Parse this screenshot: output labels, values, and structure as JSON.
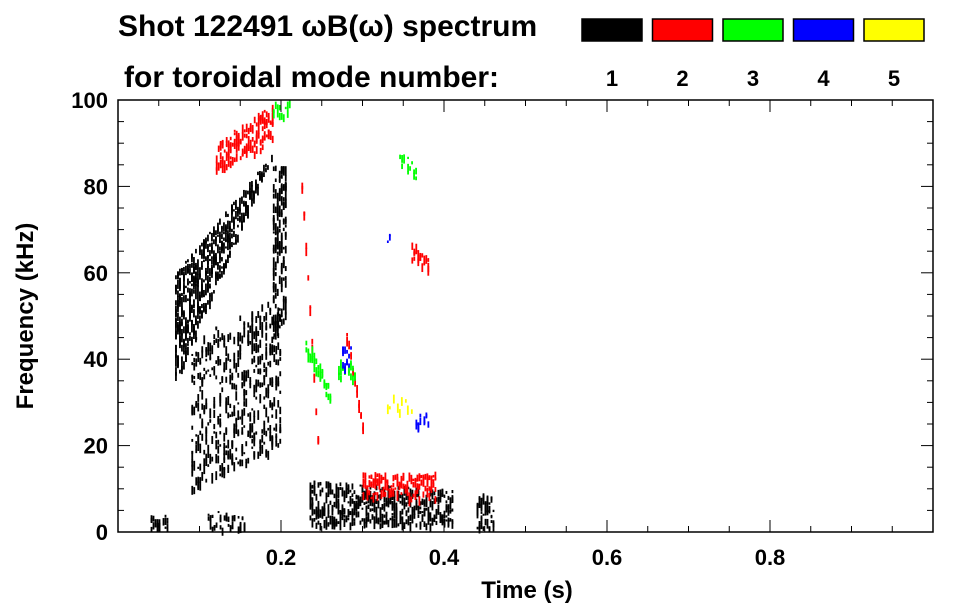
{
  "chart_data": {
    "type": "heatmap",
    "title_line1": "Shot 122491 ωB(ω) spectrum",
    "title_line2": "for toroidal mode number:",
    "xlabel": "Time (s)",
    "ylabel": "Frequency (kHz)",
    "xlim": [
      0,
      1.0
    ],
    "ylim": [
      0,
      100
    ],
    "x_ticks": [
      {
        "value": 0.2,
        "label": "0.2"
      },
      {
        "value": 0.4,
        "label": "0.4"
      },
      {
        "value": 0.6,
        "label": "0.6"
      },
      {
        "value": 0.8,
        "label": "0.8"
      }
    ],
    "y_ticks": [
      {
        "value": 0,
        "label": "0"
      },
      {
        "value": 20,
        "label": "20"
      },
      {
        "value": 40,
        "label": "40"
      },
      {
        "value": 60,
        "label": "60"
      },
      {
        "value": 80,
        "label": "80"
      },
      {
        "value": 100,
        "label": "100"
      }
    ],
    "legend_placement": "top-right",
    "legend": [
      {
        "label": "1",
        "color": "#000000"
      },
      {
        "label": "2",
        "color": "#ff0000"
      },
      {
        "label": "3",
        "color": "#00ff00"
      },
      {
        "label": "4",
        "color": "#0000ff"
      },
      {
        "label": "5",
        "color": "#ffff00"
      }
    ],
    "modes": [
      {
        "n": 1,
        "color": "#000000",
        "regions": [
          {
            "t": [
              0.07,
              0.19
            ],
            "f_low": [
              35,
              88
            ],
            "f_high": [
              60,
              88
            ],
            "density": 0.9
          },
          {
            "t": [
              0.09,
              0.2
            ],
            "f_low": [
              10,
              20
            ],
            "f_high": [
              45,
              55
            ],
            "density": 0.35
          },
          {
            "t": [
              0.235,
              0.41
            ],
            "f_low": [
              2,
              2
            ],
            "f_high": [
              12,
              10
            ],
            "density": 0.75
          },
          {
            "t": [
              0.04,
              0.06
            ],
            "f_low": [
              1,
              1
            ],
            "f_high": [
              4,
              4
            ],
            "density": 0.8
          },
          {
            "t": [
              0.11,
              0.155
            ],
            "f_low": [
              1,
              1
            ],
            "f_high": [
              5,
              5
            ],
            "density": 0.6
          },
          {
            "t": [
              0.44,
              0.46
            ],
            "f_low": [
              1,
              1
            ],
            "f_high": [
              9,
              9
            ],
            "density": 0.6
          },
          {
            "t": [
              0.19,
              0.205
            ],
            "f_low": [
              45,
              50
            ],
            "f_high": [
              85,
              85
            ],
            "density": 0.8
          }
        ]
      },
      {
        "n": 2,
        "color": "#ff0000",
        "regions": [
          {
            "t": [
              0.12,
              0.19
            ],
            "f_low": [
              84,
              90
            ],
            "f_high": [
              90,
              100
            ],
            "density": 0.7
          },
          {
            "t": [
              0.225,
              0.245
            ],
            "f_low": [
              80,
              20
            ],
            "f_high": [
              82,
              22
            ],
            "density": 0.9
          },
          {
            "t": [
              0.28,
              0.3
            ],
            "f_low": [
              45,
              24
            ],
            "f_high": [
              47,
              26
            ],
            "density": 0.9
          },
          {
            "t": [
              0.3,
              0.39
            ],
            "f_low": [
              8,
              8
            ],
            "f_high": [
              14,
              14
            ],
            "density": 0.8
          },
          {
            "t": [
              0.36,
              0.38
            ],
            "f_low": [
              63,
              61
            ],
            "f_high": [
              68,
              64
            ],
            "density": 0.8
          }
        ]
      },
      {
        "n": 3,
        "color": "#00ff00",
        "regions": [
          {
            "t": [
              0.23,
              0.26
            ],
            "f_low": [
              42,
              30
            ],
            "f_high": [
              46,
              34
            ],
            "density": 0.8
          },
          {
            "t": [
              0.27,
              0.29
            ],
            "f_low": [
              36,
              36
            ],
            "f_high": [
              40,
              40
            ],
            "density": 0.7
          },
          {
            "t": [
              0.345,
              0.365
            ],
            "f_low": [
              84,
              82
            ],
            "f_high": [
              88,
              86
            ],
            "density": 0.6
          },
          {
            "t": [
              0.19,
              0.21
            ],
            "f_low": [
              96,
              96
            ],
            "f_high": [
              100,
              100
            ],
            "density": 0.5
          }
        ]
      },
      {
        "n": 4,
        "color": "#0000ff",
        "regions": [
          {
            "t": [
              0.275,
              0.285
            ],
            "f_low": [
              38,
              38
            ],
            "f_high": [
              44,
              44
            ],
            "density": 0.7
          },
          {
            "t": [
              0.33,
              0.335
            ],
            "f_low": [
              66,
              70
            ],
            "f_high": [
              68,
              72
            ],
            "density": 0.7
          },
          {
            "t": [
              0.365,
              0.38
            ],
            "f_low": [
              25,
              25
            ],
            "f_high": [
              28,
              28
            ],
            "density": 0.7
          }
        ]
      },
      {
        "n": 5,
        "color": "#ffff00",
        "regions": [
          {
            "t": [
              0.33,
              0.36
            ],
            "f_low": [
              28,
              28
            ],
            "f_high": [
              32,
              32
            ],
            "density": 0.3
          }
        ]
      }
    ]
  }
}
